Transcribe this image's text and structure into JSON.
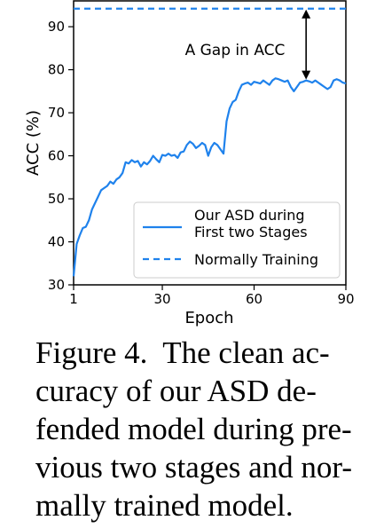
{
  "chart_data": {
    "type": "line",
    "xlabel": "Epoch",
    "ylabel": "ACC (%)",
    "xlim": [
      1,
      90
    ],
    "ylim": [
      30,
      96
    ],
    "xticks": [
      1,
      30,
      60,
      90
    ],
    "yticks": [
      30,
      40,
      50,
      60,
      70,
      80,
      90
    ],
    "legend_position": "lower-right",
    "annotation": "A Gap in ACC",
    "annotation_arrow": {
      "x": 77,
      "from": 94.2,
      "to": 77.3
    },
    "series": [
      {
        "name": "Our ASD during\nFirst two Stages",
        "style": "solid",
        "color": "#1f82ec",
        "x": [
          1,
          2,
          3,
          4,
          5,
          6,
          7,
          8,
          9,
          10,
          11,
          12,
          13,
          14,
          15,
          16,
          17,
          18,
          19,
          20,
          21,
          22,
          23,
          24,
          25,
          26,
          27,
          28,
          29,
          30,
          31,
          32,
          33,
          34,
          35,
          36,
          37,
          38,
          39,
          40,
          41,
          42,
          43,
          44,
          45,
          46,
          47,
          48,
          49,
          50,
          51,
          52,
          53,
          54,
          55,
          56,
          57,
          58,
          59,
          60,
          61,
          62,
          63,
          64,
          65,
          66,
          67,
          68,
          69,
          70,
          71,
          72,
          73,
          74,
          75,
          76,
          77,
          78,
          79,
          80,
          81,
          82,
          83,
          84,
          85,
          86,
          87,
          88,
          89,
          90
        ],
        "values": [
          32,
          39.5,
          41.5,
          43.2,
          43.5,
          45,
          47.5,
          49,
          50.5,
          52,
          52.5,
          53,
          54,
          53.5,
          54.5,
          55,
          56,
          58.5,
          58.2,
          59,
          58.5,
          58.8,
          57.5,
          58.5,
          58,
          58.8,
          60,
          59.2,
          58.5,
          60.2,
          60,
          60.5,
          60,
          60.2,
          59.5,
          60.8,
          61,
          62.5,
          63.3,
          62.8,
          61.8,
          62.3,
          63,
          62.5,
          60,
          62,
          63,
          62.5,
          61.5,
          60.5,
          68,
          71,
          72.5,
          73,
          75,
          76.5,
          76.8,
          77,
          76.5,
          77.2,
          77,
          76.8,
          77.5,
          77,
          76.5,
          77.5,
          78,
          77.8,
          77.5,
          77.2,
          77.5,
          76,
          75,
          76,
          77,
          77.2,
          77.5,
          77.3,
          77,
          77.5,
          77,
          76.5,
          76,
          75.5,
          76,
          77.5,
          77.8,
          77.5,
          77,
          76.8
        ]
      },
      {
        "name": "Normally Training",
        "style": "dashed",
        "color": "#1f82ec",
        "x": [
          1,
          90
        ],
        "values": [
          94.2,
          94.2
        ]
      }
    ]
  },
  "caption": "Figure 4.  The clean accuracy of our ASD defended model during previous two stages and normally trained model."
}
